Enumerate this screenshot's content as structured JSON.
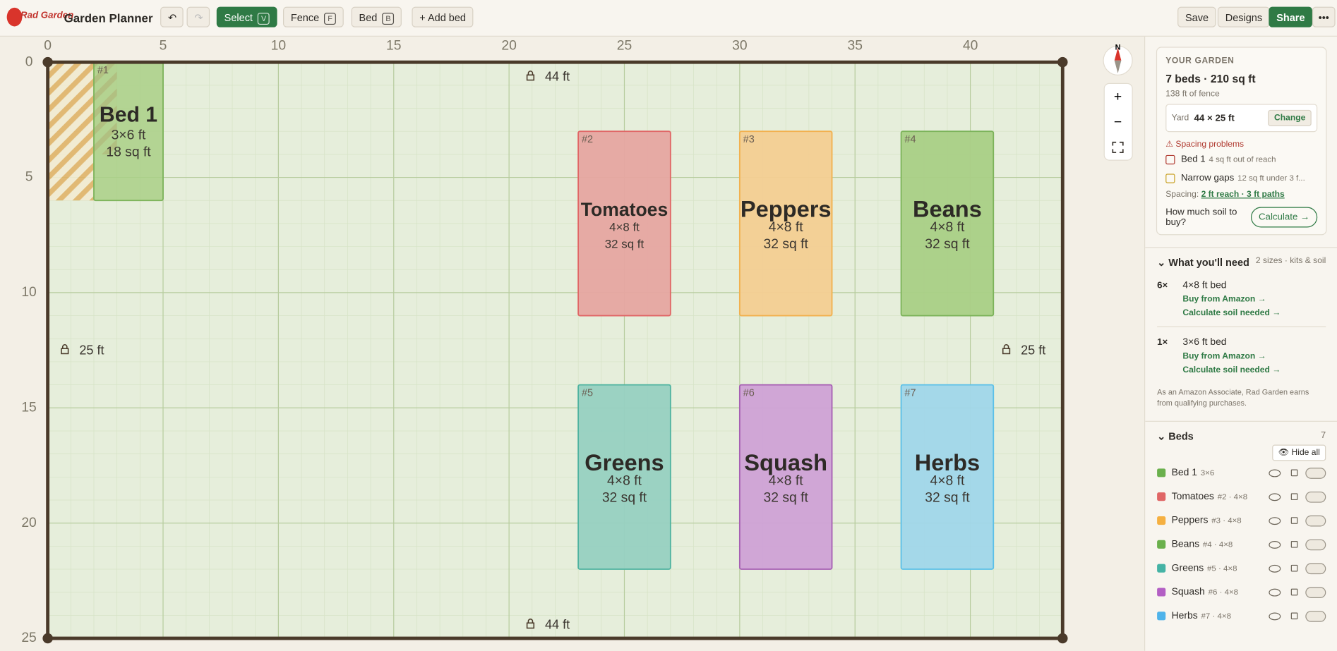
{
  "header": {
    "logo": "Rad Garden",
    "title": "Garden Planner",
    "tools": [
      {
        "label": "Select",
        "key": "V"
      },
      {
        "label": "Fence",
        "key": "F"
      },
      {
        "label": "Bed",
        "key": "B"
      }
    ],
    "add_bed": "+ Add bed",
    "actions": [
      "Save",
      "Designs",
      "Share"
    ]
  },
  "canvas": {
    "xticks": [
      0,
      5,
      10,
      15,
      20,
      25,
      30,
      35,
      40
    ],
    "yticks": [
      0,
      5,
      10,
      15,
      20,
      25
    ],
    "yard": {
      "w": 44,
      "h": 25
    },
    "top_label": "44 ft",
    "bottom_label": "44 ft",
    "left_label": "25 ft",
    "right_label": "25 ft",
    "compass": "N",
    "zoom_in": "+",
    "zoom_out": "−",
    "hatches": [
      {
        "x": 0,
        "y": 0,
        "w": 2,
        "h": 6,
        "color": "#e0b062"
      },
      {
        "x": 2,
        "y": 0,
        "w": 1,
        "h": 4,
        "color": "#d9534f"
      }
    ]
  },
  "beds": [
    {
      "num": "#1",
      "name": "Bed 1",
      "dims": "3×6 ft",
      "area": "18 sq ft",
      "x": 2,
      "y": 0,
      "w": 3,
      "h": 6,
      "fill": "#a9cf86",
      "stroke": "#7cb35a"
    },
    {
      "num": "#2",
      "name": "Tomatoes",
      "dims": "4×8 ft",
      "area": "32 sq ft",
      "x": 23,
      "y": 3,
      "w": 4,
      "h": 8,
      "fill": "#e6a5a1",
      "stroke": "#e06666"
    },
    {
      "num": "#3",
      "name": "Peppers",
      "dims": "4×8 ft",
      "area": "32 sq ft",
      "x": 30,
      "y": 3,
      "w": 4,
      "h": 8,
      "fill": "#f3cd92",
      "stroke": "#f2b04e"
    },
    {
      "num": "#4",
      "name": "Beans",
      "dims": "4×8 ft",
      "area": "32 sq ft",
      "x": 37,
      "y": 3,
      "w": 4,
      "h": 8,
      "fill": "#a9cf86",
      "stroke": "#7cb35a"
    },
    {
      "num": "#5",
      "name": "Greens",
      "dims": "4×8 ft",
      "area": "32 sq ft",
      "x": 23,
      "y": 14,
      "w": 4,
      "h": 8,
      "fill": "#97d0c1",
      "stroke": "#4fb3a0"
    },
    {
      "num": "#6",
      "name": "Squash",
      "dims": "4×8 ft",
      "area": "32 sq ft",
      "x": 30,
      "y": 14,
      "w": 4,
      "h": 8,
      "fill": "#cfa1d6",
      "stroke": "#a65fb3"
    },
    {
      "num": "#7",
      "name": "Herbs",
      "dims": "4×8 ft",
      "area": "32 sq ft",
      "x": 37,
      "y": 14,
      "w": 4,
      "h": 8,
      "fill": "#a0d6ea",
      "stroke": "#5bc0e8"
    }
  ],
  "sidebar": {
    "your_garden": {
      "heading": "YOUR GARDEN",
      "summary": "7 beds · 210 sq ft",
      "fence": "138 ft of fence",
      "yard_label": "Yard",
      "yard_value": "44 × 25 ft",
      "change": "Change",
      "problems_title": "Spacing problems",
      "problems": [
        {
          "name": "Bed 1",
          "detail": "4 sq ft out of reach"
        },
        {
          "name": "Narrow gaps",
          "detail": "12 sq ft under 3 f..."
        }
      ],
      "spacing_label": "Spacing:",
      "spacing_value": "2 ft reach · 3 ft paths",
      "soil_q": "How much soil to buy?",
      "calculate": "Calculate →"
    },
    "needs": {
      "title": "What you'll need",
      "meta": "2 sizes · kits & soil",
      "items": [
        {
          "qty": "6×",
          "name": "4×8 ft bed",
          "buy": "Buy from Amazon →",
          "soil": "Calculate soil needed →"
        },
        {
          "qty": "1×",
          "name": "3×6 ft bed",
          "buy": "Buy from Amazon →",
          "soil": "Calculate soil needed →"
        }
      ],
      "disclaimer": "As an Amazon Associate, Rad Garden earns from qualifying purchases."
    },
    "beds_panel": {
      "title": "Beds",
      "count": "7",
      "hide_all": "Hide all",
      "list": [
        {
          "name": "Bed 1",
          "meta": "3×6",
          "color": "#6ab04c"
        },
        {
          "name": "Tomatoes",
          "meta": "#2 · 4×8",
          "color": "#e06666"
        },
        {
          "name": "Peppers",
          "meta": "#3 · 4×8",
          "color": "#f5b041"
        },
        {
          "name": "Beans",
          "meta": "#4 · 4×8",
          "color": "#6ab04c"
        },
        {
          "name": "Greens",
          "meta": "#5 · 4×8",
          "color": "#45b3a5"
        },
        {
          "name": "Squash",
          "meta": "#6 · 4×8",
          "color": "#b35fc4"
        },
        {
          "name": "Herbs",
          "meta": "#7 · 4×8",
          "color": "#4fb3ea"
        }
      ]
    }
  }
}
